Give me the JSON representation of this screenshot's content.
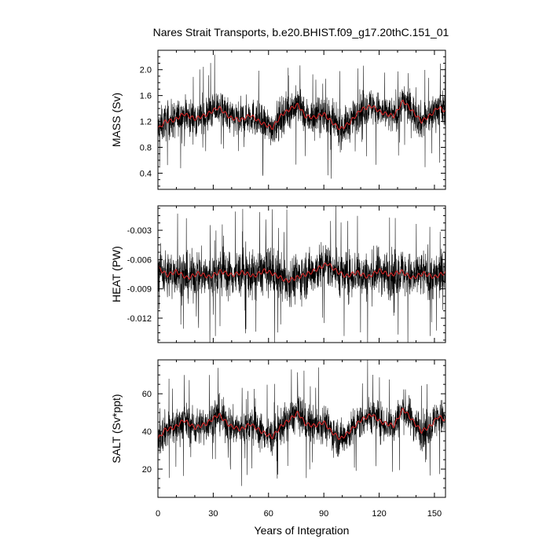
{
  "chart_data": {
    "type": "line",
    "title": "Nares Strait Transports, b.e20.BHIST.f09_g17.20thC.151_01",
    "xlabel": "Years of Integration",
    "x_range": [
      0,
      156
    ],
    "x_ticks": [
      "0",
      "30",
      "60",
      "90",
      "120",
      "150"
    ],
    "series_colors": {
      "monthly": "#000000",
      "smoothed": "#d62728"
    },
    "panels": [
      {
        "ylabel": "MASS (Sv)",
        "ylim": [
          0.15,
          2.3
        ],
        "y_ticks": [
          "0.4",
          "0.8",
          "1.2",
          "1.6",
          "2.0"
        ],
        "y_tick_values": [
          0.4,
          0.8,
          1.2,
          1.6,
          2.0
        ],
        "mean": 1.27,
        "noise_amplitude": 0.2,
        "smooth_amplitude": 0.07,
        "smoothed_anchors": [
          [
            0,
            1.08
          ],
          [
            4,
            1.2
          ],
          [
            9,
            1.22
          ],
          [
            14,
            1.32
          ],
          [
            20,
            1.24
          ],
          [
            26,
            1.3
          ],
          [
            33,
            1.42
          ],
          [
            39,
            1.26
          ],
          [
            45,
            1.22
          ],
          [
            50,
            1.3
          ],
          [
            56,
            1.18
          ],
          [
            62,
            1.1
          ],
          [
            67,
            1.3
          ],
          [
            71,
            1.38
          ],
          [
            76,
            1.46
          ],
          [
            80,
            1.28
          ],
          [
            85,
            1.26
          ],
          [
            90,
            1.32
          ],
          [
            94,
            1.2
          ],
          [
            99,
            1.08
          ],
          [
            104,
            1.18
          ],
          [
            110,
            1.38
          ],
          [
            116,
            1.44
          ],
          [
            121,
            1.34
          ],
          [
            128,
            1.28
          ],
          [
            133,
            1.52
          ],
          [
            138,
            1.36
          ],
          [
            143,
            1.2
          ],
          [
            148,
            1.3
          ],
          [
            152,
            1.42
          ],
          [
            156,
            1.36
          ]
        ]
      },
      {
        "ylabel": "HEAT (PW)",
        "ylim": [
          -0.0145,
          -0.0005
        ],
        "y_ticks": [
          "-0.003",
          "-0.006",
          "-0.009",
          "-0.012"
        ],
        "y_tick_values": [
          -0.003,
          -0.006,
          -0.009,
          -0.012
        ],
        "mean": -0.0075,
        "noise_amplitude": 0.0017,
        "smooth_amplitude": 0.0005,
        "smoothed_anchors": [
          [
            0,
            -0.0068
          ],
          [
            5,
            -0.0076
          ],
          [
            10,
            -0.0072
          ],
          [
            16,
            -0.0079
          ],
          [
            22,
            -0.0074
          ],
          [
            28,
            -0.0078
          ],
          [
            34,
            -0.0072
          ],
          [
            40,
            -0.0076
          ],
          [
            46,
            -0.0073
          ],
          [
            52,
            -0.0077
          ],
          [
            58,
            -0.0071
          ],
          [
            64,
            -0.0076
          ],
          [
            70,
            -0.0082
          ],
          [
            76,
            -0.0078
          ],
          [
            82,
            -0.0074
          ],
          [
            88,
            -0.0068
          ],
          [
            92,
            -0.0064
          ],
          [
            97,
            -0.0072
          ],
          [
            102,
            -0.0077
          ],
          [
            108,
            -0.0073
          ],
          [
            114,
            -0.0078
          ],
          [
            120,
            -0.0071
          ],
          [
            126,
            -0.0076
          ],
          [
            132,
            -0.0072
          ],
          [
            138,
            -0.0079
          ],
          [
            144,
            -0.0074
          ],
          [
            150,
            -0.0078
          ],
          [
            156,
            -0.0073
          ]
        ]
      },
      {
        "ylabel": "SALT (Sv*ppt)",
        "ylim": [
          5,
          78
        ],
        "y_ticks": [
          "20",
          "40",
          "60"
        ],
        "y_tick_values": [
          20,
          40,
          60
        ],
        "mean": 42,
        "noise_amplitude": 7,
        "smooth_amplitude": 2.5,
        "smoothed_anchors": [
          [
            0,
            36
          ],
          [
            4,
            41
          ],
          [
            9,
            42
          ],
          [
            14,
            46
          ],
          [
            20,
            42
          ],
          [
            26,
            44
          ],
          [
            33,
            49
          ],
          [
            39,
            43
          ],
          [
            45,
            41
          ],
          [
            50,
            44
          ],
          [
            56,
            40
          ],
          [
            62,
            37
          ],
          [
            67,
            43
          ],
          [
            71,
            46
          ],
          [
            76,
            50
          ],
          [
            80,
            44
          ],
          [
            85,
            43
          ],
          [
            90,
            45
          ],
          [
            94,
            40
          ],
          [
            99,
            36
          ],
          [
            104,
            40
          ],
          [
            110,
            46
          ],
          [
            116,
            49
          ],
          [
            121,
            45
          ],
          [
            128,
            43
          ],
          [
            133,
            52
          ],
          [
            138,
            46
          ],
          [
            143,
            40
          ],
          [
            148,
            43
          ],
          [
            152,
            48
          ],
          [
            156,
            46
          ]
        ]
      }
    ]
  }
}
